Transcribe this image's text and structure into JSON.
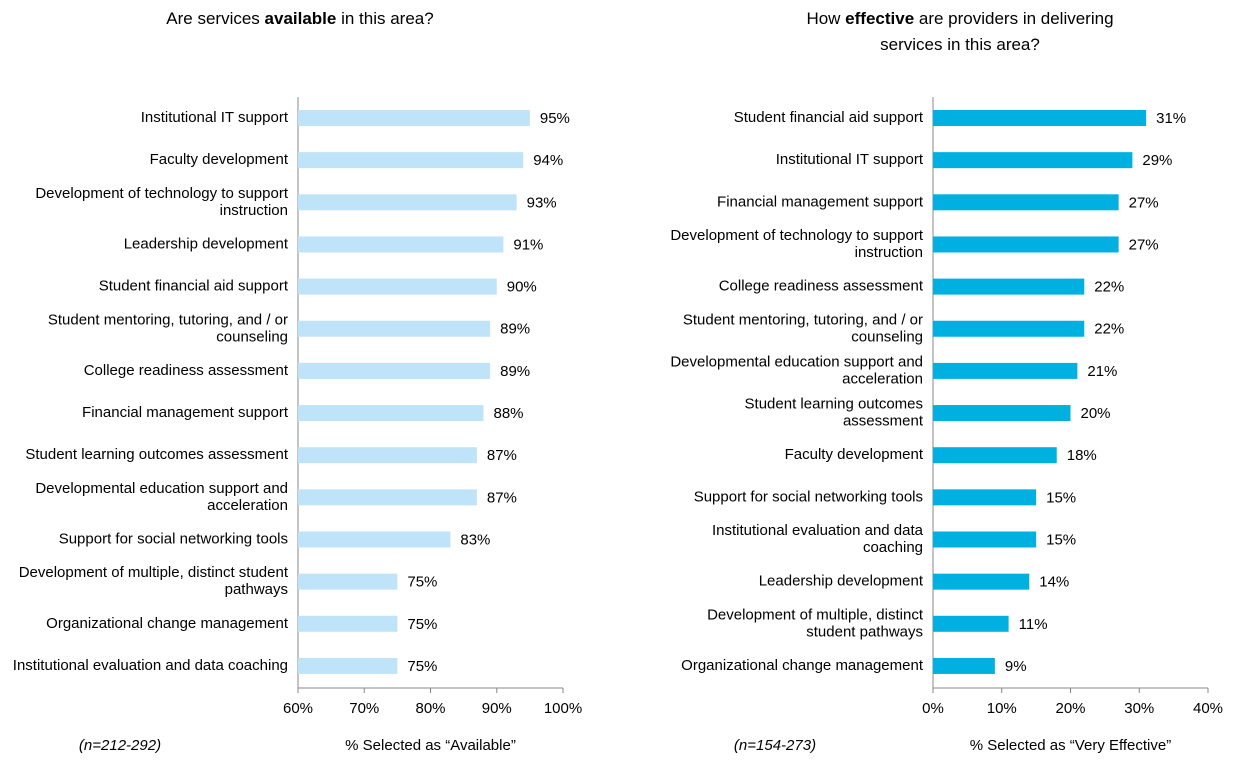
{
  "chart_data": [
    {
      "type": "barh",
      "title": [
        {
          "text": "Are services "
        },
        {
          "text": "available",
          "bold": true
        },
        {
          "text": " in this"
        },
        {
          "text": " area?"
        }
      ],
      "categories": [
        "Institutional IT support",
        "Faculty development",
        "Development of technology to support instruction",
        "Leadership development",
        "Student financial aid support",
        "Student mentoring, tutoring, and / or counseling",
        "College readiness assessment",
        "Financial management support",
        "Student learning outcomes assessment",
        "Developmental education support and acceleration",
        "Support for social networking tools",
        "Development of multiple, distinct student pathways",
        "Organizational change management",
        "Institutional evaluation and data coaching"
      ],
      "values": [
        95,
        94,
        93,
        91,
        90,
        89,
        89,
        88,
        87,
        87,
        83,
        75,
        75,
        75
      ],
      "value_labels": [
        "95%",
        "94%",
        "93%",
        "91%",
        "90%",
        "89%",
        "89%",
        "88%",
        "87%",
        "87%",
        "83%",
        "75%",
        "75%",
        "75%"
      ],
      "color": "#bfe4f9",
      "xlim": [
        60,
        100
      ],
      "xticks": [
        {
          "value": 60,
          "label": "60%"
        },
        {
          "value": 70,
          "label": "70%"
        },
        {
          "value": 80,
          "label": "80%"
        },
        {
          "value": 90,
          "label": "90%"
        },
        {
          "value": 100,
          "label": "100%"
        }
      ],
      "xlabel": "% Selected as “Available”",
      "note": "(n=212-292)"
    },
    {
      "type": "barh",
      "title": [
        {
          "text": "How "
        },
        {
          "text": "effective",
          "bold": true
        },
        {
          "text": " are providers in delivering"
        },
        {
          "text": " services in this area?"
        }
      ],
      "categories": [
        "Student financial aid support",
        "Institutional IT support",
        "Financial management support",
        "Development of technology to support instruction",
        "College readiness assessment",
        "Student mentoring, tutoring, and / or counseling",
        "Developmental education support and acceleration",
        "Student learning outcomes assessment",
        "Faculty development",
        "Support for social networking tools",
        "Institutional evaluation and data coaching",
        "Leadership development",
        "Development of multiple, distinct student pathways",
        "Organizational change management"
      ],
      "values": [
        31,
        29,
        27,
        27,
        22,
        22,
        21,
        20,
        18,
        15,
        15,
        14,
        11,
        9
      ],
      "value_labels": [
        "31%",
        "29%",
        "27%",
        "27%",
        "22%",
        "22%",
        "21%",
        "20%",
        "18%",
        "15%",
        "15%",
        "14%",
        "11%",
        "9%"
      ],
      "color": "#00b0e0",
      "xlim": [
        0,
        40
      ],
      "xticks": [
        {
          "value": 0,
          "label": "0%"
        },
        {
          "value": 10,
          "label": "10%"
        },
        {
          "value": 20,
          "label": "20%"
        },
        {
          "value": 30,
          "label": "30%"
        },
        {
          "value": 40,
          "label": "40%"
        }
      ],
      "xlabel": "% Selected as “Very Effective”",
      "note": "(n=154-273)"
    }
  ]
}
